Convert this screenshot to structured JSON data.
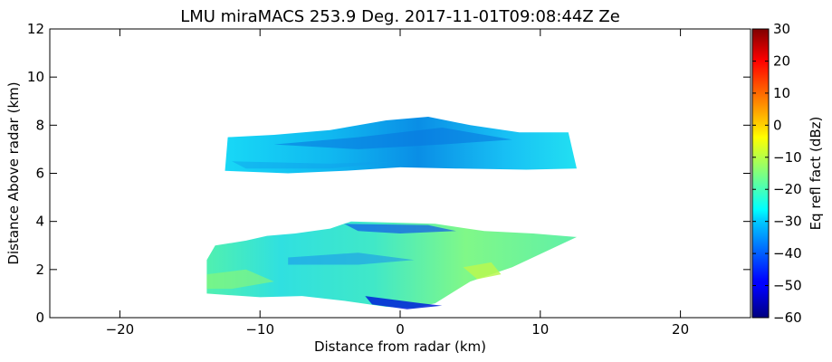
{
  "chart_data": {
    "type": "heatmap",
    "title": "LMU miraMACS 253.9 Deg. 2017-11-01T09:08:44Z  Ze",
    "xlabel": "Distance from radar (km)",
    "ylabel": "Distance Above radar  (km)",
    "xlim": [
      -25,
      25
    ],
    "ylim": [
      0,
      12
    ],
    "x_ticks": [
      -20,
      -10,
      0,
      10,
      20
    ],
    "x_tick_labels": [
      "−20",
      "−10",
      "0",
      "10",
      "20"
    ],
    "y_ticks": [
      0,
      2,
      4,
      6,
      8,
      10,
      12
    ],
    "y_tick_labels": [
      "0",
      "2",
      "4",
      "6",
      "8",
      "10",
      "12"
    ],
    "colormap": "jet",
    "colorbar": {
      "label": "Eq refl fact (dBz)",
      "range": [
        -60,
        30
      ],
      "ticks": [
        -60,
        -50,
        -40,
        -30,
        -20,
        -10,
        0,
        10,
        20,
        30
      ],
      "tick_labels": [
        "−60",
        "−50",
        "−40",
        "−30",
        "−20",
        "−10",
        "0",
        "10",
        "20",
        "30"
      ]
    },
    "echo_regions": [
      {
        "name": "upper layer",
        "outline_km": [
          [
            -12.3,
            7.5
          ],
          [
            -9,
            7.6
          ],
          [
            -5,
            7.8
          ],
          [
            -1,
            8.2
          ],
          [
            2,
            8.35
          ],
          [
            5,
            8.0
          ],
          [
            8.5,
            7.7
          ],
          [
            12.0,
            7.7
          ],
          [
            12.6,
            6.2
          ],
          [
            9,
            6.15
          ],
          [
            4,
            6.2
          ],
          [
            0,
            6.25
          ],
          [
            -4,
            6.1
          ],
          [
            -8,
            6.0
          ],
          [
            -12.5,
            6.1
          ]
        ],
        "typical_dbz": -32
      },
      {
        "name": "lower layer",
        "outline_km": [
          [
            -13.8,
            2.4
          ],
          [
            -13.2,
            3.0
          ],
          [
            -11,
            3.2
          ],
          [
            -9.5,
            3.4
          ],
          [
            -7.5,
            3.5
          ],
          [
            -5,
            3.7
          ],
          [
            -3.5,
            4.0
          ],
          [
            2.5,
            3.9
          ],
          [
            6,
            3.6
          ],
          [
            9.5,
            3.5
          ],
          [
            12.6,
            3.35
          ],
          [
            8,
            2.1
          ],
          [
            5,
            1.5
          ],
          [
            2.5,
            0.6
          ],
          [
            1,
            0.4
          ],
          [
            -1,
            0.45
          ],
          [
            -4,
            0.7
          ],
          [
            -7,
            0.9
          ],
          [
            -10,
            0.85
          ],
          [
            -13.8,
            1.0
          ]
        ],
        "typical_dbz": -22
      },
      {
        "name": "bright core",
        "outline_km": [
          [
            4.5,
            2.1
          ],
          [
            6.5,
            2.3
          ],
          [
            7.2,
            1.8
          ],
          [
            5.5,
            1.6
          ]
        ],
        "typical_dbz": -12
      }
    ]
  }
}
